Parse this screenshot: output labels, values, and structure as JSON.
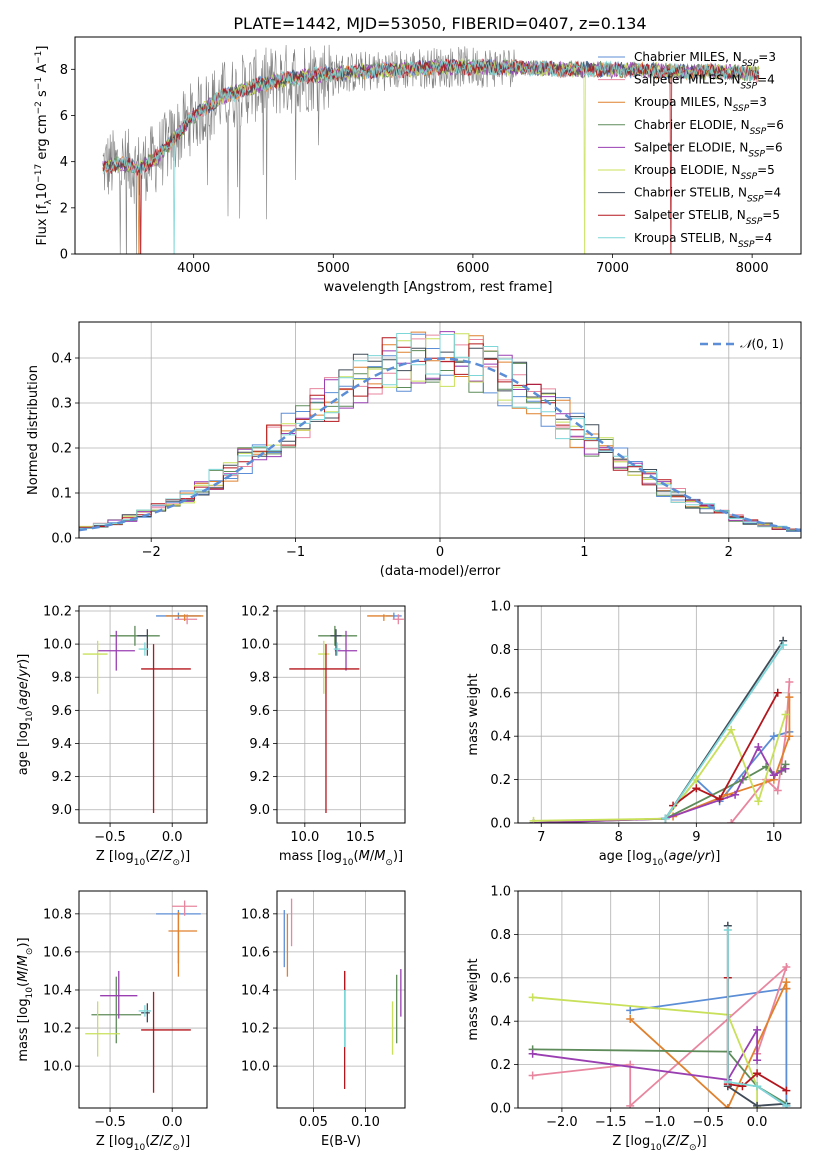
{
  "figure": {
    "title": "PLATE=1442, MJD=53050, FIBERID=0407, z=0.134",
    "colors": {
      "data": "#808080",
      "Chabrier MILES": "#5b8ed6",
      "Salpeter MILES": "#e8869f",
      "Kroupa MILES": "#e0812e",
      "Chabrier ELODIE": "#5e8b5a",
      "Salpeter ELODIE": "#9a3fb2",
      "Kroupa ELODIE": "#c8e05a",
      "Chabrier STELIB": "#404b58",
      "Salpeter STELIB": "#b3171e",
      "Kroupa STELIB": "#7dd6d8"
    }
  },
  "chart_data": [
    {
      "id": "spectrum",
      "type": "line",
      "xlabel": "wavelength [Angstrom, rest frame]",
      "ylabel": "Flux [f_λ10^{-17} erg cm^{-2} s^{-1} A^{-1}]",
      "xlim": [
        3150,
        8350
      ],
      "ylim": [
        0,
        9.4
      ],
      "xticks": [
        "4000",
        "5000",
        "6000",
        "7000",
        "8000"
      ],
      "yticks": [
        "0",
        "2",
        "4",
        "6",
        "8"
      ],
      "grid": false,
      "legend": "right",
      "legend_entries": [
        {
          "model": "Chabrier MILES",
          "n": "3"
        },
        {
          "model": "Salpeter MILES",
          "n": "4"
        },
        {
          "model": "Kroupa MILES",
          "n": "3"
        },
        {
          "model": "Chabrier ELODIE",
          "n": "6"
        },
        {
          "model": "Salpeter ELODIE",
          "n": "6"
        },
        {
          "model": "Kroupa ELODIE",
          "n": "5"
        },
        {
          "model": "Chabrier STELIB",
          "n": "4"
        },
        {
          "model": "Salpeter STELIB",
          "n": "5"
        },
        {
          "model": "Kroupa STELIB",
          "n": "4"
        }
      ],
      "model_continuum": {
        "x": [
          3350,
          3500,
          3600,
          3700,
          3800,
          3900,
          4000,
          4200,
          4400,
          4600,
          4800,
          5000,
          5200,
          5500,
          5800,
          6000,
          6300,
          6600,
          6900,
          7200,
          7500,
          7800,
          8050
        ],
        "y": [
          3.8,
          3.9,
          3.7,
          4.0,
          4.6,
          5.3,
          6.0,
          6.8,
          7.2,
          7.5,
          7.7,
          7.8,
          7.9,
          8.0,
          8.1,
          8.1,
          8.1,
          8.0,
          8.0,
          7.95,
          7.9,
          7.9,
          7.8
        ]
      },
      "dropouts": [
        {
          "model": "Kroupa MILES",
          "x": 3610
        },
        {
          "model": "Salpeter STELIB",
          "x": 3620
        },
        {
          "model": "Kroupa STELIB",
          "x": 3860
        },
        {
          "model": "Kroupa ELODIE",
          "x": 6800
        },
        {
          "model": "Salpeter STELIB",
          "x": 7420
        }
      ]
    },
    {
      "id": "residual_hist",
      "type": "bar",
      "xlabel": "(data-model)/error",
      "ylabel": "Normed distribution",
      "xlim": [
        -2.5,
        2.5
      ],
      "ylim": [
        0,
        0.48
      ],
      "xticks": [
        "−2",
        "−1",
        "0",
        "1",
        "2"
      ],
      "yticks": [
        "0.0",
        "0.1",
        "0.2",
        "0.3",
        "0.4"
      ],
      "grid": true,
      "legend": "top-right",
      "reference_label": "N(0, 1)",
      "bin_width": 0.1,
      "bins_start": -2.5,
      "reference_curve": "normal(0,1)"
    },
    {
      "id": "age_vs_Z",
      "type": "scatter",
      "xlabel": "Z [log10(Z/Z⊙)]",
      "ylabel": "age  [log10(age/yr)]",
      "xlim": [
        -0.75,
        0.28
      ],
      "ylim": [
        8.92,
        10.23
      ],
      "xticks": [
        "−0.5",
        "0.0"
      ],
      "yticks": [
        "9.0",
        "9.2",
        "9.4",
        "9.6",
        "9.8",
        "10.0",
        "10.2"
      ],
      "grid": true,
      "points": [
        {
          "model": "Chabrier MILES",
          "x": 0.05,
          "y": 10.17,
          "xerr": [
            0.18,
            0.18
          ],
          "yerr": [
            0.02,
            0.02
          ]
        },
        {
          "model": "Salpeter MILES",
          "x": 0.12,
          "y": 10.15,
          "xerr": [
            0.1,
            0.08
          ],
          "yerr": [
            0.03,
            0.03
          ]
        },
        {
          "model": "Kroupa MILES",
          "x": 0.1,
          "y": 10.17,
          "xerr": [
            0.15,
            0.15
          ],
          "yerr": [
            0.03,
            0.01
          ]
        },
        {
          "model": "Chabrier ELODIE",
          "x": -0.3,
          "y": 10.05,
          "xerr": [
            0.2,
            0.2
          ],
          "yerr": [
            0.06,
            0.06
          ]
        },
        {
          "model": "Salpeter ELODIE",
          "x": -0.45,
          "y": 9.96,
          "xerr": [
            0.15,
            0.15
          ],
          "yerr": [
            0.12,
            0.12
          ]
        },
        {
          "model": "Kroupa ELODIE",
          "x": -0.6,
          "y": 9.94,
          "xerr": [
            0.12,
            0.08
          ],
          "yerr": [
            0.24,
            0.08
          ]
        },
        {
          "model": "Chabrier STELIB",
          "x": -0.2,
          "y": 10.05,
          "xerr": [
            0.08,
            0.0
          ],
          "yerr": [
            0.12,
            0.04
          ]
        },
        {
          "model": "Salpeter STELIB",
          "x": -0.15,
          "y": 9.85,
          "xerr": [
            0.1,
            0.3
          ],
          "yerr": [
            0.87,
            0.15
          ]
        },
        {
          "model": "Kroupa STELIB",
          "x": -0.22,
          "y": 9.97,
          "xerr": [
            0.05,
            0.03
          ],
          "yerr": [
            0.04,
            0.04
          ]
        }
      ]
    },
    {
      "id": "age_vs_mass",
      "type": "scatter",
      "xlabel": "mass [log10(M/M⊙)]",
      "ylabel": "",
      "xlim": [
        9.75,
        10.9
      ],
      "ylim": [
        8.92,
        10.23
      ],
      "xticks": [
        "10.0",
        "10.5"
      ],
      "yticks": [
        "9.0",
        "9.2",
        "9.4",
        "9.6",
        "9.8",
        "10.0",
        "10.2"
      ],
      "grid": true,
      "points": [
        {
          "model": "Chabrier MILES",
          "x": 10.8,
          "y": 10.17,
          "xerr": [
            0.07,
            0.07
          ],
          "yerr": [
            0.02,
            0.02
          ]
        },
        {
          "model": "Salpeter MILES",
          "x": 10.84,
          "y": 10.15,
          "xerr": [
            0.05,
            0.05
          ],
          "yerr": [
            0.03,
            0.03
          ]
        },
        {
          "model": "Kroupa MILES",
          "x": 10.71,
          "y": 10.17,
          "xerr": [
            0.15,
            0.08
          ],
          "yerr": [
            0.03,
            0.01
          ]
        },
        {
          "model": "Chabrier ELODIE",
          "x": 10.27,
          "y": 10.05,
          "xerr": [
            0.15,
            0.2
          ],
          "yerr": [
            0.06,
            0.06
          ]
        },
        {
          "model": "Salpeter ELODIE",
          "x": 10.37,
          "y": 9.96,
          "xerr": [
            0.1,
            0.1
          ],
          "yerr": [
            0.12,
            0.12
          ]
        },
        {
          "model": "Kroupa ELODIE",
          "x": 10.17,
          "y": 9.94,
          "xerr": [
            0.05,
            0.05
          ],
          "yerr": [
            0.24,
            0.08
          ]
        },
        {
          "model": "Chabrier STELIB",
          "x": 10.28,
          "y": 10.05,
          "xerr": [
            0.05,
            0.05
          ],
          "yerr": [
            0.12,
            0.04
          ]
        },
        {
          "model": "Salpeter STELIB",
          "x": 10.19,
          "y": 9.85,
          "xerr": [
            0.33,
            0.3
          ],
          "yerr": [
            0.87,
            0.15
          ]
        },
        {
          "model": "Kroupa STELIB",
          "x": 10.29,
          "y": 9.97,
          "xerr": [
            0.03,
            0.03
          ],
          "yerr": [
            0.04,
            0.04
          ]
        }
      ]
    },
    {
      "id": "weight_vs_age",
      "type": "line",
      "xlabel": "age  [log10(age/yr)]",
      "ylabel": "mass weight",
      "xlim": [
        6.7,
        10.35
      ],
      "ylim": [
        0,
        1
      ],
      "xticks": [
        "7",
        "8",
        "9",
        "10"
      ],
      "yticks": [
        "0.0",
        "0.2",
        "0.4",
        "0.6",
        "0.8",
        "1.0"
      ],
      "grid": true,
      "series": [
        {
          "model": "Chabrier MILES",
          "x": [
            8.6,
            9.0,
            9.3,
            10.0,
            10.2
          ],
          "y": [
            0.02,
            0.2,
            0.1,
            0.4,
            0.42
          ]
        },
        {
          "model": "Salpeter MILES",
          "x": [
            9.45,
            9.9,
            10.05,
            10.15,
            10.2
          ],
          "y": [
            0.0,
            0.2,
            0.15,
            0.4,
            0.65
          ]
        },
        {
          "model": "Kroupa MILES",
          "x": [
            8.7,
            9.4,
            10.0,
            10.2,
            10.2
          ],
          "y": [
            0.03,
            0.13,
            0.2,
            0.4,
            0.58
          ]
        },
        {
          "model": "Chabrier ELODIE",
          "x": [
            6.9,
            8.6,
            9.6,
            9.9,
            10.0,
            10.1,
            10.15
          ],
          "y": [
            0.0,
            0.02,
            0.2,
            0.26,
            0.22,
            0.24,
            0.27
          ]
        },
        {
          "model": "Salpeter ELODIE",
          "x": [
            6.9,
            8.6,
            9.5,
            9.8,
            10.0,
            10.15
          ],
          "y": [
            0.0,
            0.02,
            0.13,
            0.35,
            0.22,
            0.25
          ]
        },
        {
          "model": "Kroupa ELODIE",
          "x": [
            6.9,
            8.6,
            9.0,
            9.45,
            9.8,
            10.15
          ],
          "y": [
            0.01,
            0.02,
            0.2,
            0.43,
            0.1,
            0.5
          ]
        },
        {
          "model": "Chabrier STELIB",
          "x": [
            8.6,
            10.12
          ],
          "y": [
            0.02,
            0.84
          ]
        },
        {
          "model": "Salpeter STELIB",
          "x": [
            8.7,
            9.0,
            9.3,
            10.05
          ],
          "y": [
            0.08,
            0.16,
            0.11,
            0.6
          ]
        },
        {
          "model": "Kroupa STELIB",
          "x": [
            8.6,
            10.12
          ],
          "y": [
            0.02,
            0.82
          ]
        }
      ]
    },
    {
      "id": "mass_vs_Z",
      "type": "scatter",
      "xlabel": "Z [log10(Z/Z⊙)]",
      "ylabel": "mass [log10(M/M⊙)]",
      "xlim": [
        -0.75,
        0.28
      ],
      "ylim": [
        9.78,
        10.92
      ],
      "xticks": [
        "−0.5",
        "0.0"
      ],
      "yticks": [
        "10.0",
        "10.2",
        "10.4",
        "10.6",
        "10.8"
      ],
      "grid": true,
      "points": [
        {
          "model": "Chabrier MILES",
          "x": 0.05,
          "y": 10.8,
          "xerr": [
            0.18,
            0.18
          ],
          "yerr": [
            0.26,
            0.02
          ]
        },
        {
          "model": "Salpeter MILES",
          "x": 0.1,
          "y": 10.84,
          "xerr": [
            0.1,
            0.1
          ],
          "yerr": [
            0.05,
            0.03
          ]
        },
        {
          "model": "Kroupa MILES",
          "x": 0.05,
          "y": 10.71,
          "xerr": [
            0.08,
            0.15
          ],
          "yerr": [
            0.24,
            0.1
          ]
        },
        {
          "model": "Chabrier ELODIE",
          "x": -0.45,
          "y": 10.27,
          "xerr": [
            0.2,
            0.2
          ],
          "yerr": [
            0.15,
            0.2
          ]
        },
        {
          "model": "Salpeter ELODIE",
          "x": -0.43,
          "y": 10.37,
          "xerr": [
            0.15,
            0.15
          ],
          "yerr": [
            0.12,
            0.13
          ]
        },
        {
          "model": "Kroupa ELODIE",
          "x": -0.6,
          "y": 10.17,
          "xerr": [
            0.1,
            0.18
          ],
          "yerr": [
            0.12,
            0.17
          ]
        },
        {
          "model": "Chabrier STELIB",
          "x": -0.2,
          "y": 10.28,
          "xerr": [
            0.05,
            0.02
          ],
          "yerr": [
            0.05,
            0.05
          ]
        },
        {
          "model": "Salpeter STELIB",
          "x": -0.15,
          "y": 10.19,
          "xerr": [
            0.1,
            0.3
          ],
          "yerr": [
            0.33,
            0.2
          ]
        },
        {
          "model": "Kroupa STELIB",
          "x": -0.22,
          "y": 10.29,
          "xerr": [
            0.05,
            0.05
          ],
          "yerr": [
            0.03,
            0.03
          ]
        }
      ]
    },
    {
      "id": "mass_vs_ebv",
      "type": "scatter",
      "xlabel": "E(B-V)",
      "ylabel": "",
      "xlim": [
        0.015,
        0.138
      ],
      "ylim": [
        9.78,
        10.92
      ],
      "xticks": [
        "0.05",
        "0.10"
      ],
      "yticks": [
        "10.0",
        "10.2",
        "10.4",
        "10.6",
        "10.8"
      ],
      "grid": true,
      "points": [
        {
          "model": "Chabrier MILES",
          "x": 0.022,
          "y": 10.7,
          "xerr": [
            0,
            0
          ],
          "yerr": [
            0.18,
            0.12
          ]
        },
        {
          "model": "Salpeter MILES",
          "x": 0.029,
          "y": 10.74,
          "xerr": [
            0,
            0
          ],
          "yerr": [
            0.11,
            0.14
          ]
        },
        {
          "model": "Kroupa MILES",
          "x": 0.025,
          "y": 10.65,
          "xerr": [
            0,
            0
          ],
          "yerr": [
            0.18,
            0.15
          ]
        },
        {
          "model": "Chabrier ELODIE",
          "x": 0.13,
          "y": 10.3,
          "xerr": [
            0,
            0
          ],
          "yerr": [
            0.18,
            0.18
          ]
        },
        {
          "model": "Salpeter ELODIE",
          "x": 0.134,
          "y": 10.38,
          "xerr": [
            0,
            0
          ],
          "yerr": [
            0.12,
            0.13
          ]
        },
        {
          "model": "Kroupa ELODIE",
          "x": 0.126,
          "y": 10.2,
          "xerr": [
            0,
            0
          ],
          "yerr": [
            0.14,
            0.14
          ]
        },
        {
          "model": "Chabrier STELIB",
          "x": 0.08,
          "y": 10.3,
          "xerr": [
            0,
            0
          ],
          "yerr": [
            0.2,
            0.2
          ]
        },
        {
          "model": "Salpeter STELIB",
          "x": 0.08,
          "y": 10.2,
          "xerr": [
            0,
            0
          ],
          "yerr": [
            0.32,
            0.3
          ]
        },
        {
          "model": "Kroupa STELIB",
          "x": 0.08,
          "y": 10.25,
          "xerr": [
            0,
            0
          ],
          "yerr": [
            0.15,
            0.15
          ]
        }
      ]
    },
    {
      "id": "weight_vs_Z",
      "type": "line",
      "xlabel": "Z [log10(Z/Z⊙)]",
      "ylabel": "mass weight",
      "xlim": [
        -2.45,
        0.45
      ],
      "ylim": [
        0,
        1
      ],
      "xticks": [
        "−2.0",
        "−1.5",
        "−1.0",
        "−0.5",
        "0.0"
      ],
      "yticks": [
        "0.0",
        "0.2",
        "0.4",
        "0.6",
        "0.8",
        "1.0"
      ],
      "grid": true,
      "series": [
        {
          "model": "Chabrier MILES",
          "x": [
            -1.3,
            0.3,
            0.3,
            0.0
          ],
          "y": [
            0.45,
            0.55,
            0.01,
            0.1
          ]
        },
        {
          "model": "Salpeter MILES",
          "x": [
            -2.3,
            -1.3,
            -1.3,
            0.3,
            0.0
          ],
          "y": [
            0.15,
            0.2,
            0.01,
            0.65,
            0.25
          ]
        },
        {
          "model": "Kroupa MILES",
          "x": [
            -1.3,
            -0.3,
            0.3,
            0.3
          ],
          "y": [
            0.41,
            0.0,
            0.58,
            0.55
          ]
        },
        {
          "model": "Chabrier ELODIE",
          "x": [
            -2.3,
            -0.3,
            0.0,
            0.3
          ],
          "y": [
            0.27,
            0.26,
            0.1,
            0.02
          ]
        },
        {
          "model": "Salpeter ELODIE",
          "x": [
            -2.3,
            -0.3,
            0.0,
            0.0
          ],
          "y": [
            0.25,
            0.13,
            0.36,
            0.22
          ]
        },
        {
          "model": "Kroupa ELODIE",
          "x": [
            -2.3,
            -0.3,
            0.0,
            0.0
          ],
          "y": [
            0.51,
            0.43,
            0.1,
            0.0
          ]
        },
        {
          "model": "Chabrier STELIB",
          "x": [
            -0.3,
            -0.3,
            0.0,
            0.3
          ],
          "y": [
            0.84,
            0.1,
            0.01,
            0.02
          ]
        },
        {
          "model": "Salpeter STELIB",
          "x": [
            -0.3,
            -0.3,
            -0.15,
            0.0,
            0.3
          ],
          "y": [
            0.6,
            0.11,
            0.1,
            0.16,
            0.08
          ]
        },
        {
          "model": "Kroupa STELIB",
          "x": [
            -0.3,
            -0.3,
            0.0,
            0.3
          ],
          "y": [
            0.82,
            0.12,
            0.1,
            0.01
          ]
        }
      ]
    }
  ]
}
